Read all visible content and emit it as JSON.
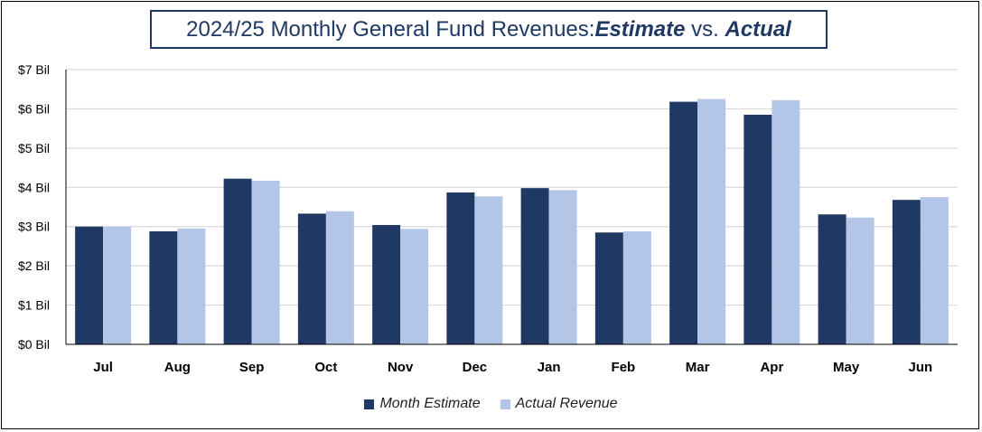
{
  "title": {
    "prefix": "2024/25 Monthly General Fund Revenues: ",
    "estimate_word": "Estimate",
    "vs_word": " vs. ",
    "actual_word": "Actual"
  },
  "colors": {
    "estimate": "#1f3864",
    "actual": "#b4c6e7",
    "grid": "#d9d9d9",
    "axis": "#000000"
  },
  "chart_data": {
    "type": "bar",
    "title": "2024/25 Monthly General Fund Revenues: Estimate vs. Actual",
    "categories": [
      "Jul",
      "Aug",
      "Sep",
      "Oct",
      "Nov",
      "Dec",
      "Jan",
      "Feb",
      "Mar",
      "Apr",
      "May",
      "Jun"
    ],
    "series": [
      {
        "name": "Month Estimate",
        "values": [
          3.0,
          2.88,
          4.22,
          3.33,
          3.04,
          3.87,
          3.98,
          2.85,
          6.18,
          5.85,
          3.31,
          3.68
        ]
      },
      {
        "name": "Actual Revenue",
        "values": [
          3.0,
          2.95,
          4.17,
          3.39,
          2.94,
          3.77,
          3.93,
          2.88,
          6.25,
          6.22,
          3.23,
          3.75
        ]
      }
    ],
    "y_ticks": [
      "$0 Bil",
      "$1 Bil",
      "$2 Bil",
      "$3 Bil",
      "$4 Bil",
      "$5 Bil",
      "$6 Bil",
      "$7 Bil"
    ],
    "ylim": [
      0,
      7
    ],
    "xlabel": "",
    "ylabel": "",
    "grid": true,
    "legend_position": "bottom"
  }
}
